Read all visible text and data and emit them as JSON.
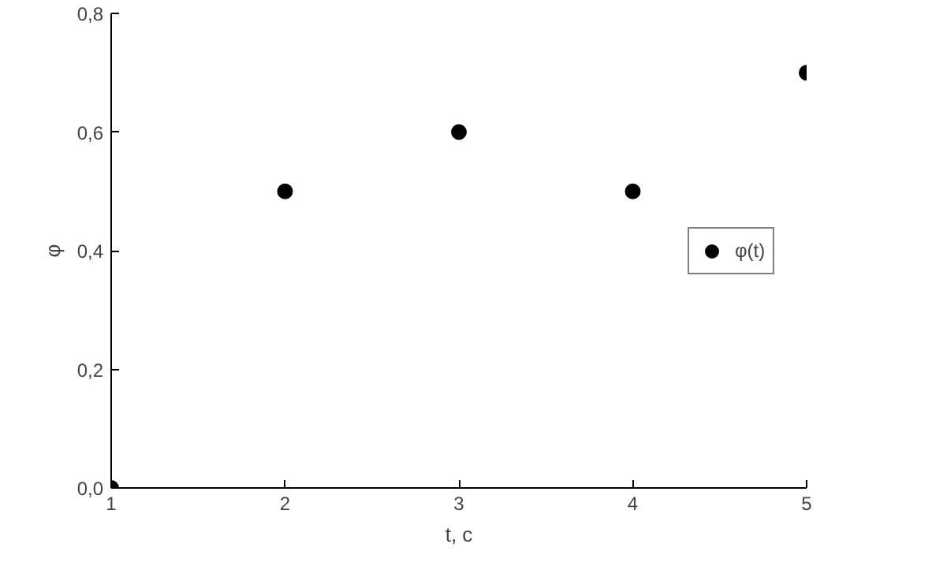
{
  "chart_data": {
    "type": "scatter",
    "xlabel": "t, c",
    "ylabel": "φ",
    "x": [
      1,
      2,
      3,
      4,
      5
    ],
    "series": [
      {
        "name": "φ(t)",
        "color": "#000000",
        "values": [
          0.0,
          0.5,
          0.6,
          0.5,
          0.7
        ]
      }
    ],
    "xlim": [
      1,
      5
    ],
    "xticks": [
      1,
      2,
      3,
      4,
      5
    ],
    "ylim": [
      0,
      0.8
    ],
    "yticks": [
      {
        "value": 0,
        "label": "0,0"
      },
      {
        "value": 0.2,
        "label": "0,2"
      },
      {
        "value": 0.4,
        "label": "0,4"
      },
      {
        "value": 0.6,
        "label": "0,6"
      },
      {
        "value": 0.8,
        "label": "0,8"
      }
    ],
    "grid": false,
    "legend": "right",
    "marker": "circle"
  }
}
